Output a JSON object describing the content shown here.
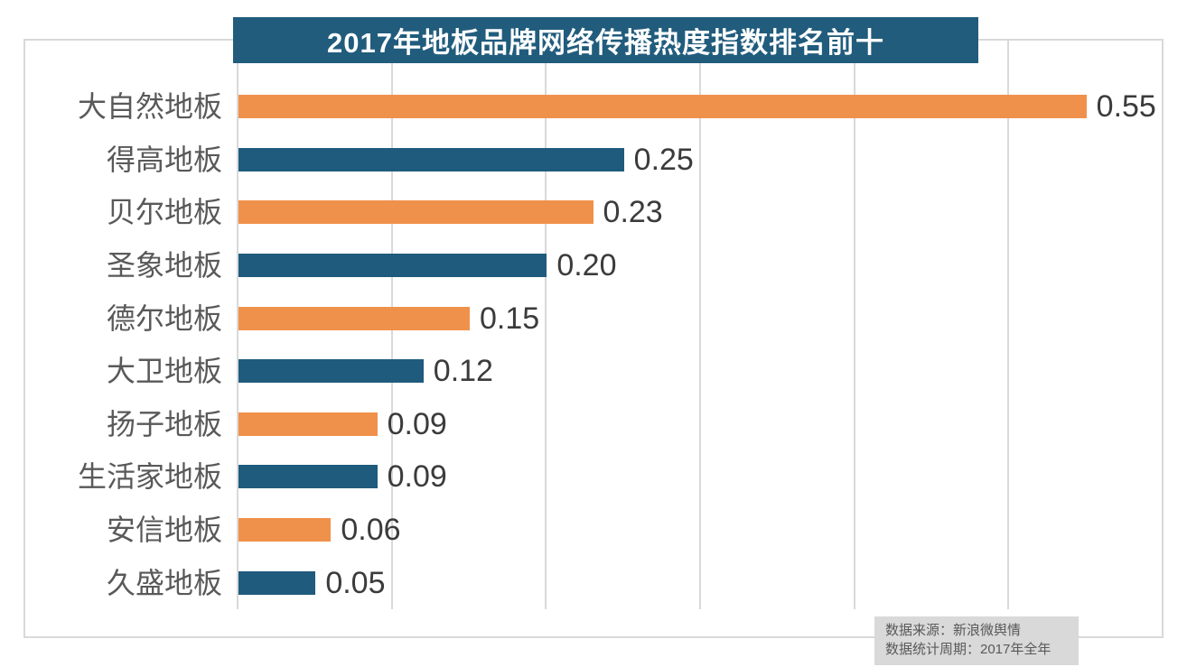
{
  "header": {
    "title": "2017年地板品牌网络传播热度指数排名前十",
    "title_bg": "#215C7D",
    "title_color": "#FFFFFF"
  },
  "footer": {
    "source_line1": "数据来源：新浪微舆情",
    "source_line2": "数据统计周期：2017年全年"
  },
  "chart_data": {
    "type": "bar",
    "orientation": "horizontal",
    "title": "2017年地板品牌网络传播热度指数排名前十",
    "categories": [
      "大自然地板",
      "得高地板",
      "贝尔地板",
      "圣象地板",
      "德尔地板",
      "大卫地板",
      "扬子地板",
      "生活家地板",
      "安信地板",
      "久盛地板"
    ],
    "values": [
      0.55,
      0.25,
      0.23,
      0.2,
      0.15,
      0.12,
      0.09,
      0.09,
      0.06,
      0.05
    ],
    "value_labels": [
      "0.55",
      "0.25",
      "0.23",
      "0.20",
      "0.15",
      "0.12",
      "0.09",
      "0.09",
      "0.06",
      "0.05"
    ],
    "xlim": [
      0,
      0.6
    ],
    "gridline_interval": 0.1,
    "grid": "vertical-only",
    "legend": "none",
    "palette": [
      "#F0914B",
      "#1E5B7D"
    ],
    "bar_color_rule": "alternating orange/blue by row, starting orange",
    "category_label_color": "#595959",
    "value_label_color": "#3B3B3B",
    "grid_color": "#D9D9D9"
  }
}
